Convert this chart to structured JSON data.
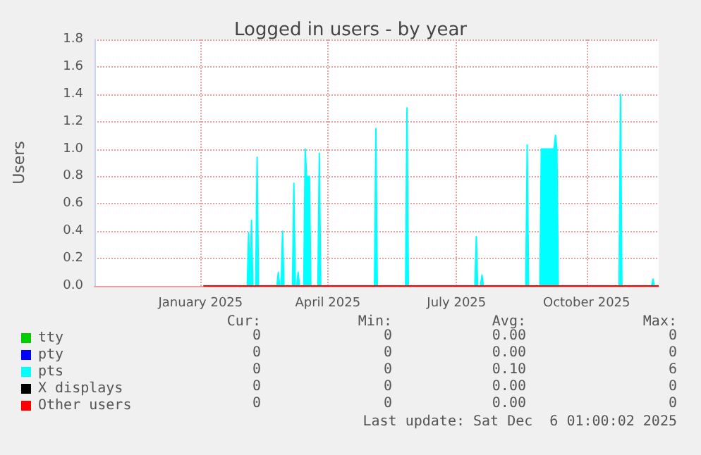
{
  "chart_data": {
    "type": "area",
    "title": "Logged in users - by year",
    "ylabel": "Users",
    "x": [
      "2025-01-17",
      "2025-02-17",
      "2025-02-18",
      "2025-02-19",
      "2025-02-20",
      "2025-02-21",
      "2025-02-23",
      "2025-02-24",
      "2025-02-25",
      "2025-03-10",
      "2025-03-11",
      "2025-03-12",
      "2025-03-13",
      "2025-03-14",
      "2025-03-15",
      "2025-03-21",
      "2025-03-22",
      "2025-03-23",
      "2025-03-24",
      "2025-03-25",
      "2025-03-26",
      "2025-03-29",
      "2025-03-30",
      "2025-03-31",
      "2025-04-01",
      "2025-04-02",
      "2025-04-03",
      "2025-04-08",
      "2025-04-09",
      "2025-04-10",
      "2025-05-18",
      "2025-05-19",
      "2025-05-20",
      "2025-06-09",
      "2025-06-10",
      "2025-06-11",
      "2025-07-28",
      "2025-07-29",
      "2025-07-30",
      "2025-08-01",
      "2025-08-02",
      "2025-08-03",
      "2025-09-02",
      "2025-09-03",
      "2025-09-04",
      "2025-09-12",
      "2025-09-13",
      "2025-09-22",
      "2025-09-23",
      "2025-09-24",
      "2025-09-25",
      "2025-11-07",
      "2025-11-08",
      "2025-11-09",
      "2025-11-30",
      "2025-12-01",
      "2025-12-02",
      "2025-12-05"
    ],
    "series": [
      {
        "name": "tty",
        "color": "#00cc00",
        "type": "line",
        "values": [
          null,
          null,
          null,
          null,
          null,
          null,
          null,
          null,
          null,
          null,
          null,
          null,
          null,
          null,
          null,
          null,
          null,
          null,
          null,
          null,
          null,
          null,
          null,
          null,
          null,
          null,
          null,
          null,
          null,
          null,
          null,
          null,
          null,
          null,
          null,
          null,
          null,
          null,
          null,
          null,
          null,
          null,
          null,
          null,
          null,
          null,
          null,
          null,
          null,
          null,
          null,
          null,
          null,
          null,
          null,
          null,
          null,
          null
        ]
      },
      {
        "name": "pty",
        "color": "#0000ff",
        "type": "line",
        "values": [
          null,
          null,
          null,
          null,
          null,
          null,
          null,
          null,
          null,
          null,
          null,
          null,
          null,
          null,
          null,
          null,
          null,
          null,
          null,
          null,
          null,
          null,
          null,
          null,
          null,
          null,
          null,
          null,
          null,
          null,
          null,
          null,
          null,
          null,
          null,
          null,
          null,
          null,
          null,
          null,
          null,
          null,
          null,
          null,
          null,
          null,
          null,
          null,
          null,
          null,
          null,
          null,
          null,
          null,
          null,
          null,
          null,
          null
        ]
      },
      {
        "name": "pts",
        "color": "#00ffff",
        "values": [
          0,
          0,
          0.39,
          0,
          0.48,
          0,
          0,
          0.94,
          0,
          0,
          0.1,
          0,
          0,
          0.4,
          0,
          0,
          0.75,
          0,
          0,
          0.1,
          0,
          0,
          1.0,
          0.8,
          0.8,
          0.8,
          0,
          0,
          0.97,
          0,
          0,
          1.15,
          0,
          0,
          1.3,
          0,
          0,
          0.36,
          0,
          0,
          0.08,
          0,
          0,
          1.03,
          0,
          0,
          1.0,
          1.0,
          1.1,
          1.0,
          0,
          0,
          1.4,
          0,
          0,
          0.05,
          0,
          0
        ]
      },
      {
        "name": "X displays",
        "color": "#000000",
        "type": "line",
        "values": [
          null,
          null,
          null,
          null,
          null,
          null,
          null,
          null,
          null,
          null,
          null,
          null,
          null,
          null,
          null,
          null,
          null,
          null,
          null,
          null,
          null,
          null,
          null,
          null,
          null,
          null,
          null,
          null,
          null,
          null,
          null,
          null,
          null,
          null,
          null,
          null,
          null,
          null,
          null,
          null,
          null,
          null,
          null,
          null,
          null,
          null,
          null,
          null,
          null,
          null,
          null,
          null,
          null,
          null,
          null,
          null,
          null,
          null
        ]
      },
      {
        "name": "Other users",
        "color": "#ff0000",
        "type": "line",
        "x": [
          "2025-01-17",
          "2025-12-05"
        ],
        "values": [
          0,
          0
        ]
      }
    ],
    "xlim": [
      "2024-11-01",
      "2025-12-05"
    ],
    "xticks": [
      {
        "value": "2025-01-15",
        "label": "January 2025"
      },
      {
        "value": "2025-04-15",
        "label": "April 2025"
      },
      {
        "value": "2025-07-15",
        "label": "July 2025"
      },
      {
        "value": "2025-10-15",
        "label": "October 2025"
      }
    ],
    "ylim": [
      0,
      1.8
    ],
    "yticks": [
      {
        "value": 0,
        "label": "0.0"
      },
      {
        "value": 0.2,
        "label": "0.2"
      },
      {
        "value": 0.4,
        "label": "0.4"
      },
      {
        "value": 0.6,
        "label": "0.6"
      },
      {
        "value": 0.8,
        "label": "0.8"
      },
      {
        "value": 1,
        "label": "1.0"
      },
      {
        "value": 1.2,
        "label": "1.2"
      },
      {
        "value": 1.4,
        "label": "1.4"
      },
      {
        "value": 1.6,
        "label": "1.6"
      },
      {
        "value": 1.8,
        "label": "1.8"
      }
    ],
    "grid": true,
    "legend": "bottom left",
    "marker": "none",
    "annotations": [
      "Cur:",
      "Min:",
      "Avg:",
      "Max:",
      "0",
      "0",
      "0.00",
      "0",
      "0",
      "0",
      "0.00",
      "0",
      "0",
      "0",
      "0.10",
      "6",
      "0",
      "0",
      "0.00",
      "0",
      "0",
      "0",
      "0.00",
      "0",
      "Last update: Sat Dec  6 01:00:02 2025"
    ]
  }
}
